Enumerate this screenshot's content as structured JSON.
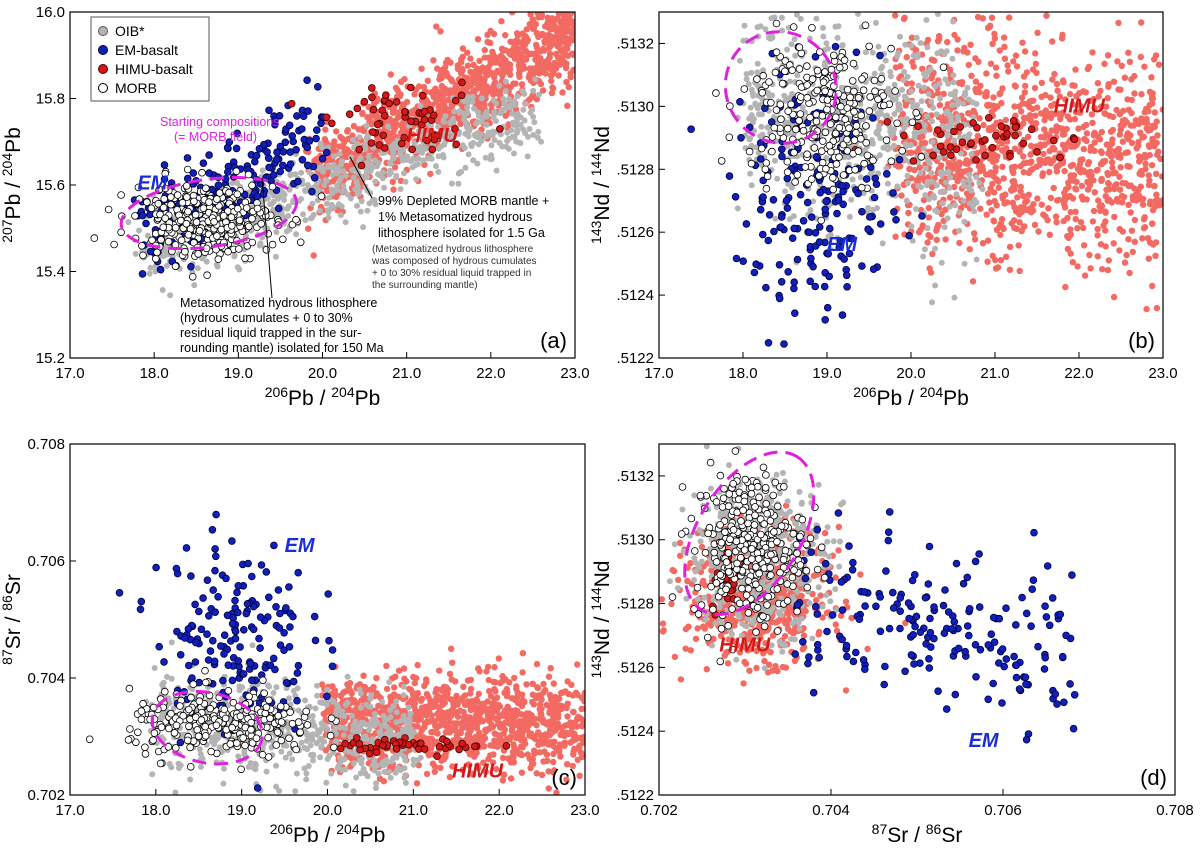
{
  "colors": {
    "oib": "#b4b4b4",
    "oib_edge": "#555555",
    "em": "#1020b8",
    "em_edge": "#000044",
    "himu": "#d41818",
    "himu_cloud": "#f26a62",
    "morb_fill": "#ffffff",
    "morb_edge": "#000000",
    "field": "#e020e0",
    "em_label": "#1a2ed8",
    "himu_label": "#d41818"
  },
  "legend": [
    {
      "key": "oib",
      "label": "OIB*"
    },
    {
      "key": "em",
      "label": "EM-basalt"
    },
    {
      "key": "himu",
      "label": "HIMU-basalt"
    },
    {
      "key": "morb",
      "label": "MORB"
    }
  ],
  "chart_data": [
    {
      "id": "a",
      "type": "scatter",
      "panel_label": "(a)",
      "xlabel": {
        "pre": "206",
        "main": "Pb / ",
        "pre2": "204",
        "main2": "Pb"
      },
      "ylabel": {
        "pre": "207",
        "main": "Pb / ",
        "pre2": "204",
        "main2": "Pb"
      },
      "xlim": [
        17.0,
        23.0
      ],
      "ylim": [
        15.2,
        16.0
      ],
      "xticks": [
        "17.0",
        "18.0",
        "19.0",
        "20.0",
        "21.0",
        "22.0",
        "23.0"
      ],
      "yticks": [
        "15.2",
        "15.4",
        "15.6",
        "15.8",
        "16.0"
      ],
      "fields": [
        {
          "cx": 18.65,
          "cy": 15.535,
          "rx": 1.05,
          "ry": 0.078,
          "rot": 8
        }
      ],
      "clouds": {
        "himu": {
          "x0": 19.9,
          "y0": 15.62,
          "x1": 23.0,
          "y1": 15.95,
          "w": 0.05,
          "n": 1100
        },
        "oib": {
          "x0": 17.9,
          "y0": 15.44,
          "x1": 22.5,
          "y1": 15.78,
          "w": 0.045,
          "n": 700
        },
        "em": {
          "x0": 17.8,
          "y0": 15.47,
          "x1": 20.0,
          "y1": 15.72,
          "w": 0.06,
          "n": 210
        },
        "morb": {
          "cx": 18.6,
          "cy": 15.52,
          "sx": 0.42,
          "sy": 0.045,
          "n": 320
        },
        "himu_pts": {
          "cx": 21.0,
          "cy": 15.74,
          "sx": 0.45,
          "sy": 0.04,
          "n": 55
        }
      },
      "group_labels": [
        {
          "text": "EM",
          "color": "em_label",
          "x": 17.8,
          "y": 15.59
        },
        {
          "text": "HIMU",
          "color": "himu_label",
          "x": 21.0,
          "y": 15.7
        }
      ],
      "annotations": {
        "field_label": [
          "Starting compositions",
          "(= MORB field)"
        ],
        "model_15": [
          "99% Depleted MORB mantle +",
          "1% Metasomatized hydrous",
          "lithosphere isolated for 1.5 Ga"
        ],
        "model_15_note": [
          "(Metasomatized hydrous lithosphere",
          "was composed of hydrous cumulates",
          "+ 0 to 30% residual liquid trapped in",
          "the surrounding mantle)"
        ],
        "model_150": [
          "Metasomatized hydrous lithosphere",
          "(hydrous cumulates + 0 to 30%",
          "residual liquid trapped in the sur-",
          "rounding mantle) isolated for 150 Ma"
        ]
      }
    },
    {
      "id": "b",
      "type": "scatter",
      "panel_label": "(b)",
      "xlabel": {
        "pre": "206",
        "main": "Pb / ",
        "pre2": "204",
        "main2": "Pb"
      },
      "ylabel": {
        "pre": "143",
        "main": "Nd / ",
        "pre2": "144",
        "main2": "Nd"
      },
      "xlim": [
        17.0,
        23.0
      ],
      "ylim": [
        0.5122,
        0.5133
      ],
      "xticks": [
        "17.0",
        "18.0",
        "19.0",
        "20.0",
        "21.0",
        "22.0",
        "23.0"
      ],
      "yticks": [
        ".5122",
        ".5124",
        ".5126",
        ".5128",
        ".5130",
        ".5132"
      ],
      "fields": [
        {
          "cx": 18.45,
          "cy": 0.51306,
          "rx": 0.65,
          "ry": 0.00018,
          "rot": 40
        }
      ],
      "clouds": {
        "himu": {
          "x0": 19.8,
          "y0": 0.5129,
          "x1": 23.0,
          "y1": 0.51282,
          "w": 0.00017,
          "n": 1100
        },
        "oib": {
          "x0": 18.0,
          "y0": 0.51302,
          "x1": 20.8,
          "y1": 0.51285,
          "w": 0.00017,
          "n": 650
        },
        "em": {
          "cx": 18.9,
          "cy": 0.5127,
          "sx": 0.5,
          "sy": 0.00019,
          "n": 190
        },
        "morb": {
          "cx": 18.9,
          "cy": 0.51298,
          "sx": 0.45,
          "sy": 0.00012,
          "n": 260
        },
        "himu_pts": {
          "cx": 20.9,
          "cy": 0.5129,
          "sx": 0.5,
          "sy": 4e-05,
          "n": 45
        }
      },
      "group_labels": [
        {
          "text": "HIMU",
          "color": "himu_label",
          "x": 21.7,
          "y": 0.51298
        },
        {
          "text": "EM",
          "color": "em_label",
          "x": 19.0,
          "y": 0.51254
        }
      ],
      "annotations": {}
    },
    {
      "id": "c",
      "type": "scatter",
      "panel_label": "(c)",
      "xlabel": {
        "pre": "206",
        "main": "Pb / ",
        "pre2": "204",
        "main2": "Pb"
      },
      "ylabel": {
        "pre": "87",
        "main": "Sr / ",
        "pre2": "86",
        "main2": "Sr"
      },
      "xlim": [
        17.0,
        23.0
      ],
      "ylim": [
        0.702,
        0.708
      ],
      "xticks": [
        "17.0",
        "18.0",
        "19.0",
        "20.0",
        "21.0",
        "22.0",
        "23.0"
      ],
      "yticks": [
        "0.702",
        "0.704",
        "0.706",
        "0.708"
      ],
      "fields": [
        {
          "cx": 18.6,
          "cy": 0.70315,
          "rx": 0.65,
          "ry": 0.0006,
          "rot": -12
        }
      ],
      "clouds": {
        "himu": {
          "x0": 20.0,
          "y0": 0.70325,
          "x1": 23.0,
          "y1": 0.7032,
          "w": 0.0004,
          "n": 1100
        },
        "oib": {
          "x0": 18.0,
          "y0": 0.7033,
          "x1": 21.0,
          "y1": 0.7029,
          "w": 0.0004,
          "n": 600
        },
        "em": {
          "cx": 18.9,
          "cy": 0.7047,
          "sx": 0.45,
          "sy": 0.00085,
          "n": 180
        },
        "morb": {
          "cx": 18.8,
          "cy": 0.7032,
          "sx": 0.55,
          "sy": 0.00028,
          "n": 260
        },
        "himu_pts": {
          "cx": 21.0,
          "cy": 0.70285,
          "sx": 0.45,
          "sy": 6e-05,
          "n": 45
        }
      },
      "group_labels": [
        {
          "text": "EM",
          "color": "em_label",
          "x": 19.5,
          "y": 0.70615
        },
        {
          "text": "HIMU",
          "color": "himu_label",
          "x": 21.45,
          "y": 0.7023
        }
      ],
      "annotations": {}
    },
    {
      "id": "d",
      "type": "scatter",
      "panel_label": "(d)",
      "xlabel": {
        "pre": "87",
        "main": "Sr / ",
        "pre2": "86",
        "main2": "Sr"
      },
      "ylabel": {
        "pre": "143",
        "main": "Nd / ",
        "pre2": "144",
        "main2": "Nd"
      },
      "xlim": [
        0.702,
        0.708
      ],
      "ylim": [
        0.5122,
        0.5133
      ],
      "xticks": [
        "0.702",
        "0.704",
        "0.706",
        "0.708"
      ],
      "yticks": [
        ".5122",
        ".5124",
        ".5126",
        ".5128",
        ".5130",
        ".5132"
      ],
      "fields": [
        {
          "cx": 0.70305,
          "cy": 0.51302,
          "rx": 0.00105,
          "ry": 0.00016,
          "rot": 58
        }
      ],
      "clouds": {
        "himu": {
          "cx": 0.70315,
          "cy": 0.51283,
          "sx": 0.0004,
          "sy": 0.0001,
          "n": 700
        },
        "oib": {
          "cx": 0.70315,
          "cy": 0.51295,
          "sx": 0.0004,
          "sy": 0.00012,
          "n": 500
        },
        "em": {
          "x0": 0.7036,
          "y0": 0.51285,
          "x1": 0.7068,
          "y1": 0.51262,
          "w": 0.00012,
          "n": 190
        },
        "morb": {
          "cx": 0.70305,
          "cy": 0.51298,
          "sx": 0.00032,
          "sy": 0.00012,
          "n": 320
        },
        "himu_pts": {
          "cx": 0.70285,
          "cy": 0.51287,
          "sx": 0.00012,
          "sy": 5e-05,
          "n": 30
        }
      },
      "group_labels": [
        {
          "text": "HIMU",
          "color": "himu_label",
          "x": 0.7027,
          "y": 0.51265
        },
        {
          "text": "EM",
          "color": "em_label",
          "x": 0.7056,
          "y": 0.51235
        }
      ],
      "annotations": {}
    }
  ]
}
